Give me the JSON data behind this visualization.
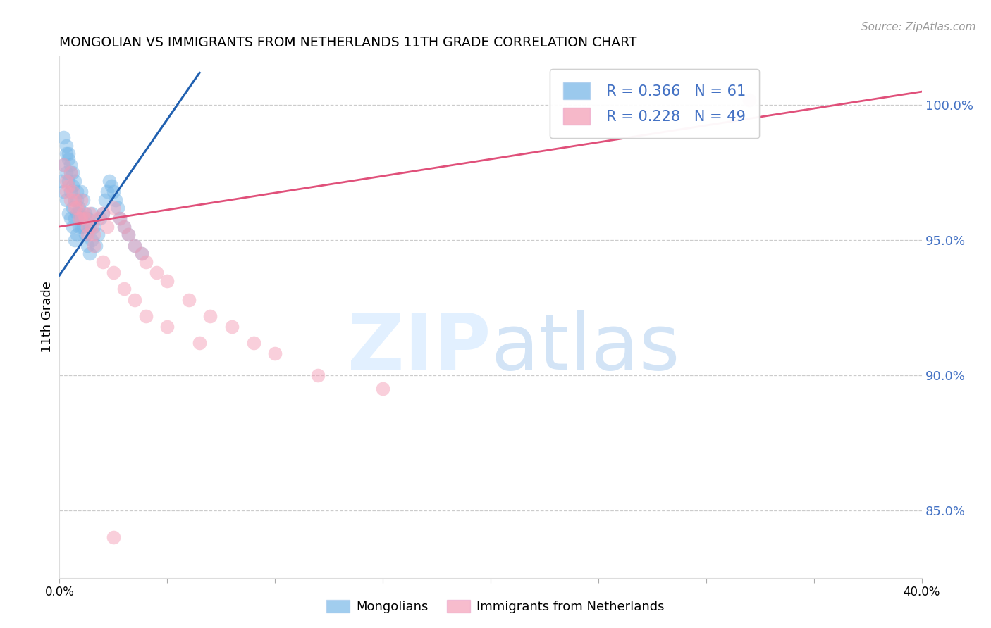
{
  "title": "MONGOLIAN VS IMMIGRANTS FROM NETHERLANDS 11TH GRADE CORRELATION CHART",
  "source": "Source: ZipAtlas.com",
  "ylabel": "11th Grade",
  "ytick_labels": [
    "85.0%",
    "90.0%",
    "95.0%",
    "100.0%"
  ],
  "ytick_values": [
    0.85,
    0.9,
    0.95,
    1.0
  ],
  "xlim": [
    0.0,
    0.4
  ],
  "ylim": [
    0.825,
    1.018
  ],
  "legend_blue_R": "R = 0.366",
  "legend_blue_N": "N = 61",
  "legend_pink_R": "R = 0.228",
  "legend_pink_N": "N = 49",
  "blue_color": "#7ab8e8",
  "pink_color": "#f4a0b8",
  "blue_line_color": "#2060b0",
  "pink_line_color": "#e0507a",
  "blue_scatter_x": [
    0.001,
    0.002,
    0.002,
    0.003,
    0.003,
    0.003,
    0.004,
    0.004,
    0.004,
    0.005,
    0.005,
    0.005,
    0.006,
    0.006,
    0.006,
    0.007,
    0.007,
    0.007,
    0.008,
    0.008,
    0.008,
    0.009,
    0.009,
    0.01,
    0.01,
    0.011,
    0.011,
    0.012,
    0.012,
    0.013,
    0.013,
    0.014,
    0.014,
    0.015,
    0.015,
    0.016,
    0.017,
    0.018,
    0.019,
    0.02,
    0.021,
    0.022,
    0.023,
    0.024,
    0.025,
    0.026,
    0.027,
    0.028,
    0.03,
    0.032,
    0.035,
    0.038,
    0.002,
    0.003,
    0.004,
    0.005,
    0.006,
    0.007,
    0.008,
    0.009,
    0.01
  ],
  "blue_scatter_y": [
    0.972,
    0.978,
    0.968,
    0.982,
    0.975,
    0.965,
    0.98,
    0.972,
    0.96,
    0.975,
    0.968,
    0.958,
    0.97,
    0.962,
    0.955,
    0.965,
    0.958,
    0.95,
    0.968,
    0.96,
    0.952,
    0.962,
    0.955,
    0.968,
    0.958,
    0.965,
    0.955,
    0.96,
    0.952,
    0.958,
    0.948,
    0.955,
    0.945,
    0.96,
    0.95,
    0.955,
    0.948,
    0.952,
    0.958,
    0.96,
    0.965,
    0.968,
    0.972,
    0.97,
    0.968,
    0.965,
    0.962,
    0.958,
    0.955,
    0.952,
    0.948,
    0.945,
    0.988,
    0.985,
    0.982,
    0.978,
    0.975,
    0.972,
    0.965,
    0.96,
    0.955
  ],
  "pink_scatter_x": [
    0.002,
    0.003,
    0.004,
    0.005,
    0.006,
    0.007,
    0.008,
    0.009,
    0.01,
    0.011,
    0.012,
    0.013,
    0.014,
    0.015,
    0.016,
    0.018,
    0.02,
    0.022,
    0.025,
    0.028,
    0.03,
    0.032,
    0.035,
    0.038,
    0.04,
    0.045,
    0.05,
    0.06,
    0.07,
    0.08,
    0.09,
    0.1,
    0.12,
    0.15,
    0.003,
    0.005,
    0.007,
    0.01,
    0.013,
    0.016,
    0.02,
    0.025,
    0.03,
    0.035,
    0.04,
    0.05,
    0.065,
    0.32,
    0.025
  ],
  "pink_scatter_y": [
    0.978,
    0.972,
    0.97,
    0.975,
    0.968,
    0.965,
    0.962,
    0.958,
    0.965,
    0.96,
    0.958,
    0.955,
    0.96,
    0.955,
    0.952,
    0.958,
    0.96,
    0.955,
    0.962,
    0.958,
    0.955,
    0.952,
    0.948,
    0.945,
    0.942,
    0.938,
    0.935,
    0.928,
    0.922,
    0.918,
    0.912,
    0.908,
    0.9,
    0.895,
    0.968,
    0.965,
    0.962,
    0.958,
    0.952,
    0.948,
    0.942,
    0.938,
    0.932,
    0.928,
    0.922,
    0.918,
    0.912,
    1.002,
    0.84
  ],
  "blue_trendline_x": [
    0.0,
    0.065
  ],
  "blue_trendline_y": [
    0.937,
    1.012
  ],
  "pink_trendline_x": [
    0.0,
    0.4
  ],
  "pink_trendline_y": [
    0.955,
    1.005
  ]
}
